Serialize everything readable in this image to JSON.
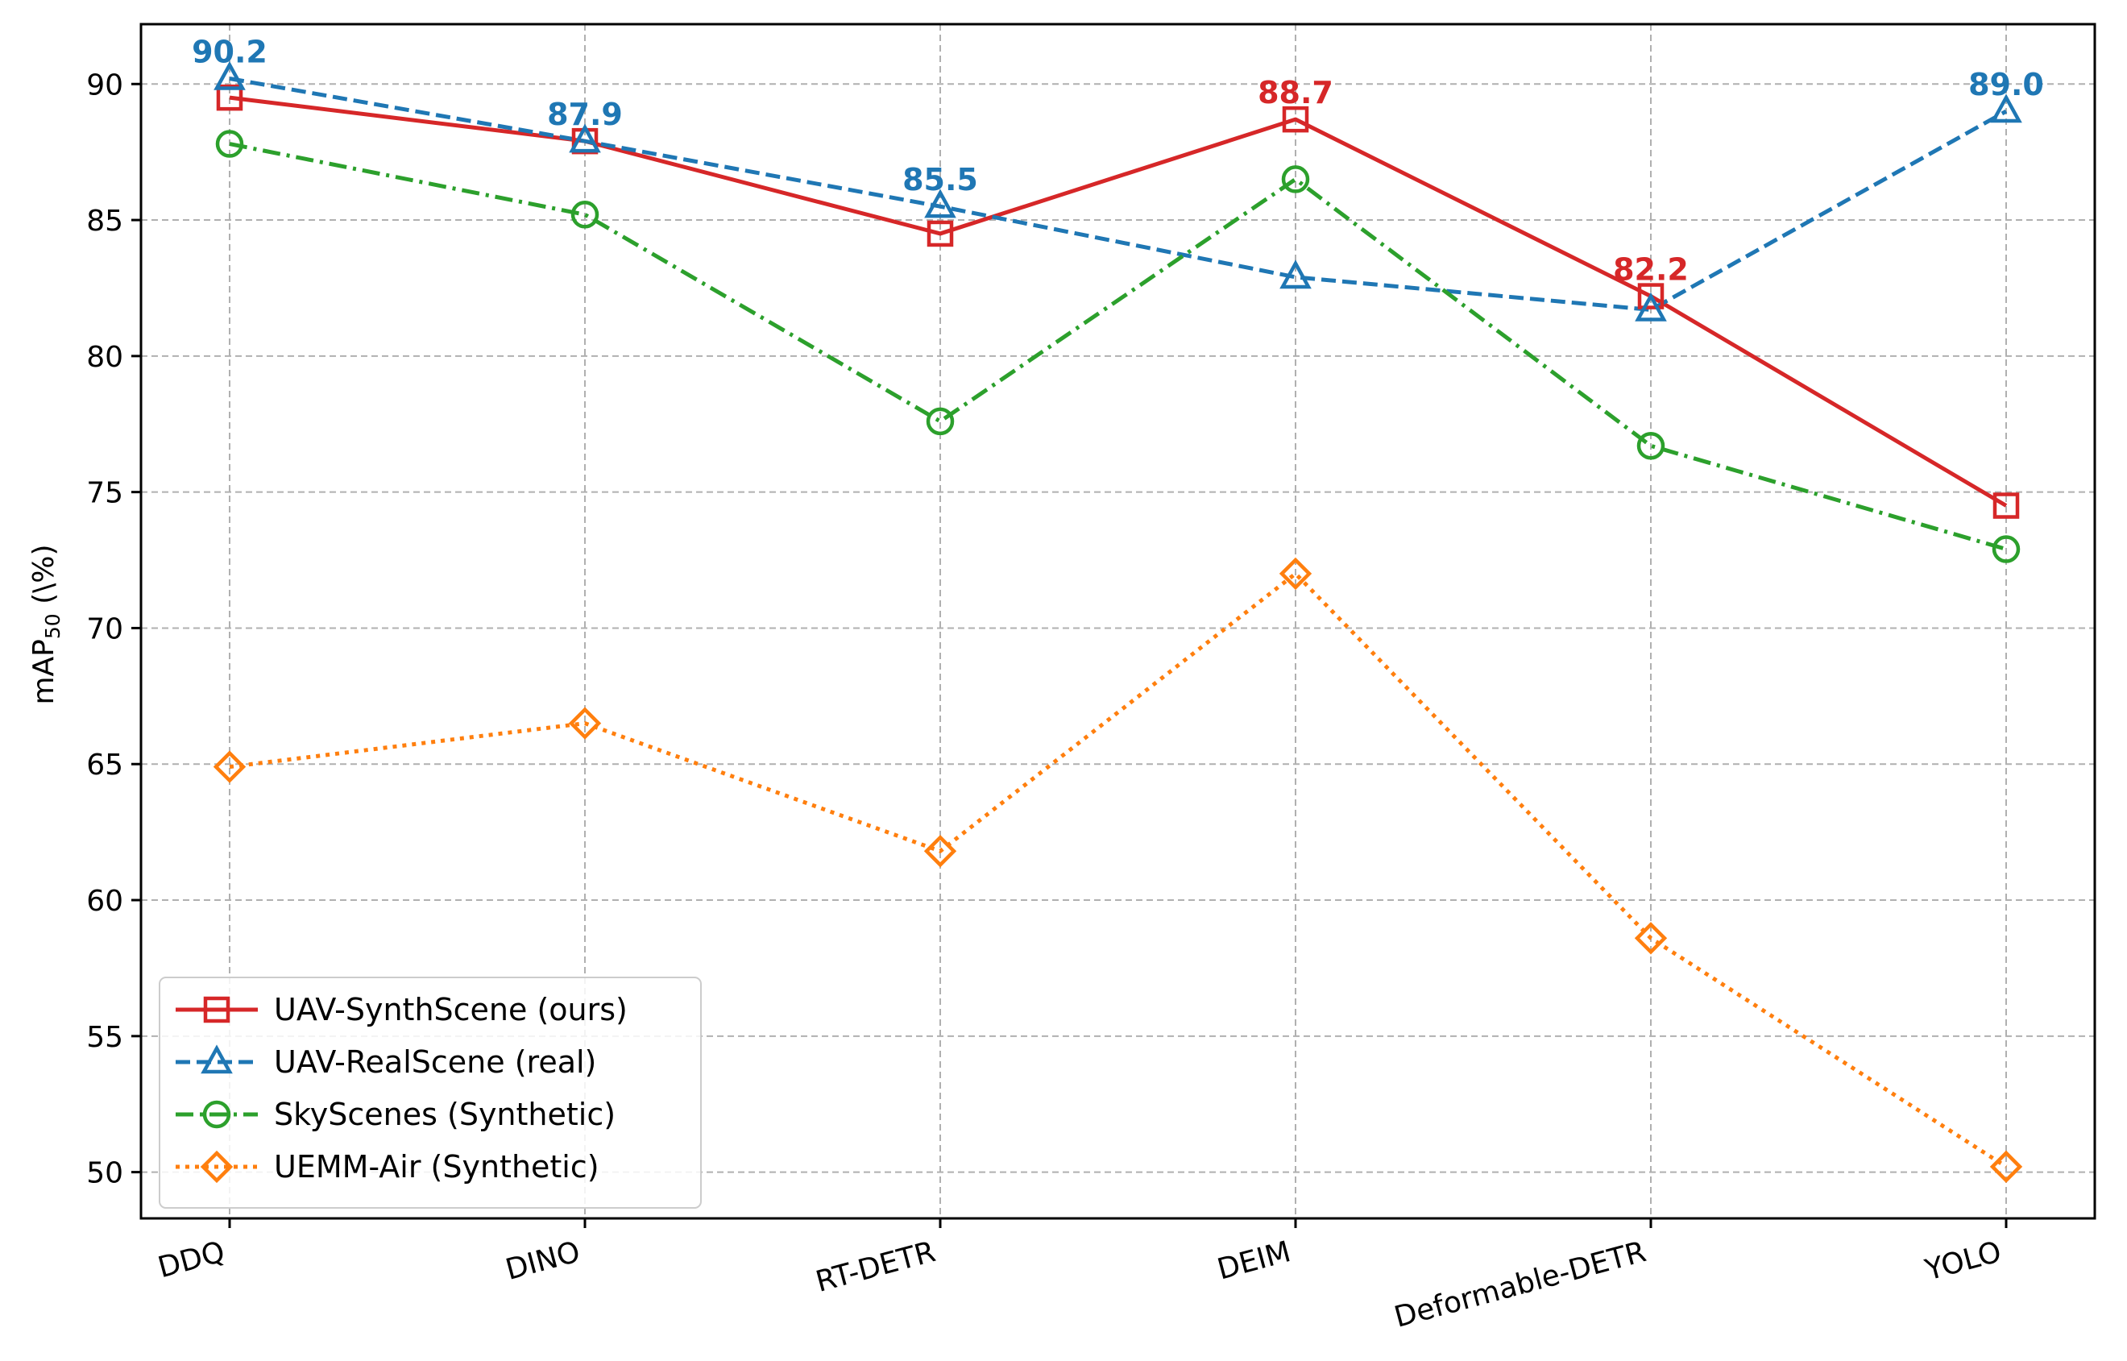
{
  "chart_data": {
    "type": "line",
    "title": "",
    "xlabel": "",
    "ylabel": "mAP",
    "ylabel_sub": "50",
    "ylabel_suffix": " (\\%)",
    "categories": [
      "DDQ",
      "DINO",
      "RT-DETR",
      "DEIM",
      "Deformable-DETR",
      "YOLO"
    ],
    "ylim": [
      48.3,
      92.2
    ],
    "yticks": [
      50,
      55,
      60,
      65,
      70,
      75,
      80,
      85,
      90
    ],
    "ytick_labels": [
      "50",
      "55",
      "60",
      "65",
      "70",
      "75",
      "80",
      "85",
      "90"
    ],
    "grid": true,
    "legend_position": "lower-left",
    "series": [
      {
        "name": "UAV-SynthScene (ours)",
        "color": "#d62728",
        "line_style": "solid",
        "marker": "square",
        "values": [
          89.5,
          87.9,
          84.5,
          88.7,
          82.2,
          74.5
        ]
      },
      {
        "name": "UAV-RealScene (real)",
        "color": "#1f77b4",
        "line_style": "dashed",
        "marker": "triangle",
        "values": [
          90.2,
          87.9,
          85.5,
          82.9,
          81.7,
          89.0
        ]
      },
      {
        "name": "SkyScenes (Synthetic)",
        "color": "#2ca02c",
        "line_style": "dashdot",
        "marker": "circle",
        "values": [
          87.8,
          85.2,
          77.6,
          86.5,
          76.7,
          72.9
        ]
      },
      {
        "name": "UEMM-Air (Synthetic)",
        "color": "#ff7f0e",
        "line_style": "dotted",
        "marker": "diamond",
        "values": [
          64.9,
          66.5,
          61.8,
          72.0,
          58.6,
          50.2
        ]
      }
    ],
    "annotations": [
      {
        "text": "90.2",
        "series": 1,
        "index": 0,
        "color": "#1f77b4"
      },
      {
        "text": "87.9",
        "series": 1,
        "index": 1,
        "color": "#1f77b4"
      },
      {
        "text": "85.5",
        "series": 1,
        "index": 2,
        "color": "#1f77b4"
      },
      {
        "text": "88.7",
        "series": 0,
        "index": 3,
        "color": "#d62728"
      },
      {
        "text": "82.2",
        "series": 0,
        "index": 4,
        "color": "#d62728"
      },
      {
        "text": "89.0",
        "series": 1,
        "index": 5,
        "color": "#1f77b4"
      }
    ]
  }
}
